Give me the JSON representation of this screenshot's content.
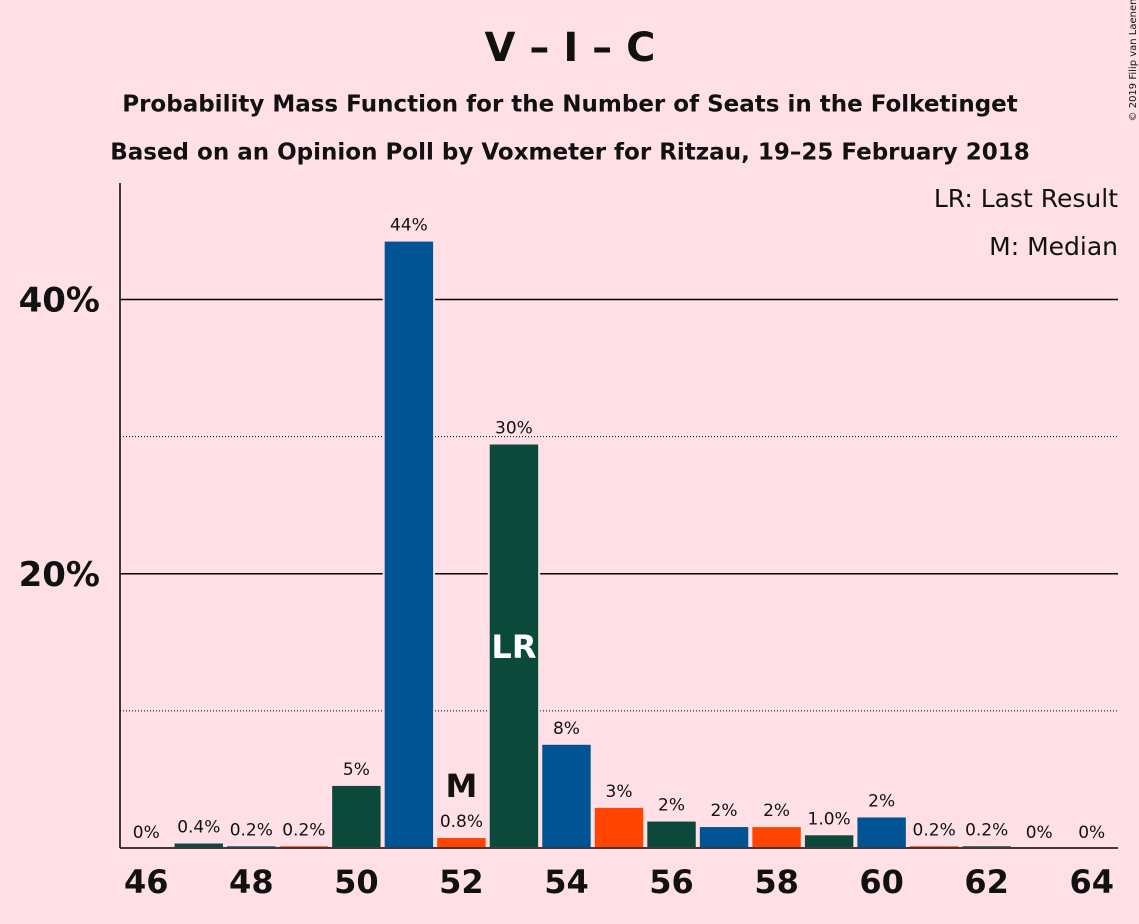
{
  "chart_data": {
    "type": "bar",
    "title": "V – I – C",
    "subtitle": "Probability Mass Function for the Number of Seats in the Folketinget",
    "subtitle2": "Based on an Opinion Poll by Voxmeter for Ritzau, 19–25 February 2018",
    "copyright": "© 2019 Filip van Laenen",
    "legend": [
      "LR: Last Result",
      "M: Median"
    ],
    "x": [
      46,
      47,
      48,
      49,
      50,
      51,
      52,
      53,
      54,
      55,
      56,
      57,
      58,
      59,
      60,
      61,
      62,
      63,
      64
    ],
    "values": [
      0,
      0.4,
      0.2,
      0.2,
      4.6,
      44.3,
      0.8,
      29.5,
      7.6,
      3.0,
      2.0,
      1.6,
      1.6,
      1.0,
      2.3,
      0.2,
      0.2,
      0,
      0
    ],
    "value_labels": [
      "0%",
      "0.4%",
      "0.2%",
      "0.2%",
      "5%",
      "44%",
      "0.8%",
      "30%",
      "8%",
      "3%",
      "2%",
      "2%",
      "2%",
      "1.0%",
      "2%",
      "0.2%",
      "0.2%",
      "0%",
      "0%"
    ],
    "colors": [
      "#ff4500",
      "#0b4a3a",
      "#005493",
      "#ff4500",
      "#0b4a3a",
      "#005493",
      "#ff4500",
      "#0b4a3a",
      "#005493",
      "#ff4500",
      "#0b4a3a",
      "#005493",
      "#ff4500",
      "#0b4a3a",
      "#005493",
      "#ff4500",
      "#0b4a3a",
      "#005493",
      "#ff4500"
    ],
    "median": {
      "x": 52,
      "label": "M"
    },
    "last_result": {
      "x": 53,
      "label": "LR"
    },
    "xlim": [
      45.5,
      64.5
    ],
    "xticks": [
      46,
      48,
      50,
      52,
      54,
      56,
      58,
      60,
      62,
      64
    ],
    "ylim": [
      0,
      48.5
    ],
    "yticks": [
      {
        "value": 20,
        "label": "20%"
      },
      {
        "value": 40,
        "label": "40%"
      }
    ],
    "yminor": [
      10,
      30
    ]
  }
}
